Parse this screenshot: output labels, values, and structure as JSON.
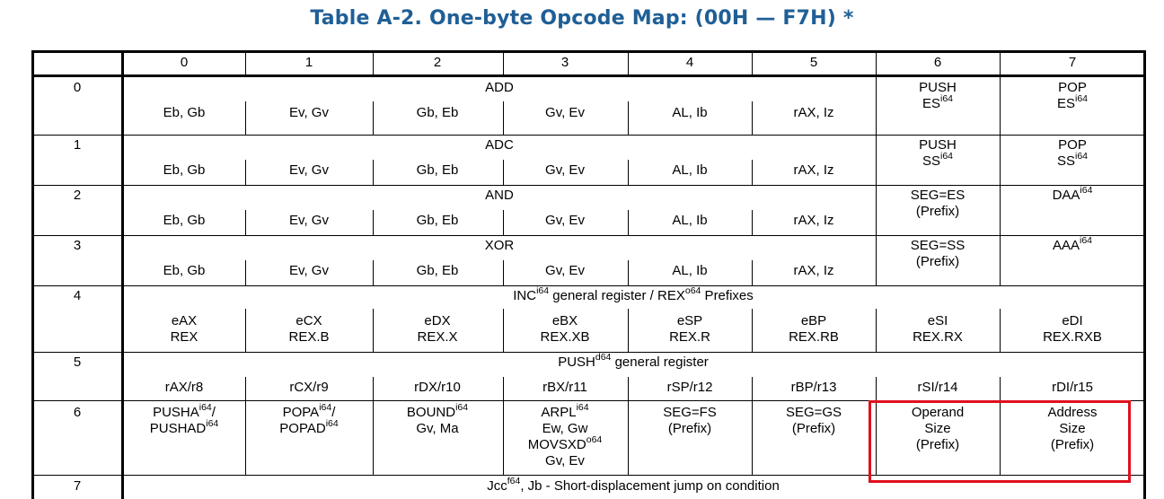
{
  "title": "Table A-2.  One-byte Opcode Map: (00H — F7H) *",
  "columns": [
    "0",
    "1",
    "2",
    "3",
    "4",
    "5",
    "6",
    "7"
  ],
  "rows": [
    {
      "label": "0",
      "group": "ADD",
      "ops": [
        "Eb, Gb",
        "Ev, Gv",
        "Gb, Eb",
        "Gv, Ev",
        "AL, Ib",
        "rAX, Iz"
      ],
      "c6": {
        "l1": "PUSH",
        "l2": "ES",
        "sup": "i64"
      },
      "c7": {
        "l1": "POP",
        "l2": "ES",
        "sup": "i64"
      }
    },
    {
      "label": "1",
      "group": "ADC",
      "ops": [
        "Eb, Gb",
        "Ev, Gv",
        "Gb, Eb",
        "Gv, Ev",
        "AL, Ib",
        "rAX, Iz"
      ],
      "c6": {
        "l1": "PUSH",
        "l2": "SS",
        "sup": "i64"
      },
      "c7": {
        "l1": "POP",
        "l2": "SS",
        "sup": "i64"
      }
    },
    {
      "label": "2",
      "group": "AND",
      "ops": [
        "Eb, Gb",
        "Ev, Gv",
        "Gb, Eb",
        "Gv, Ev",
        "AL, Ib",
        "rAX, Iz"
      ],
      "c6": {
        "l1": "SEG=ES",
        "l2": "(Prefix)"
      },
      "c7": {
        "l1": "DAA",
        "sup": "i64"
      }
    },
    {
      "label": "3",
      "group": "XOR",
      "ops": [
        "Eb, Gb",
        "Ev, Gv",
        "Gb, Eb",
        "Gv, Ev",
        "AL, Ib",
        "rAX, Iz"
      ],
      "c6": {
        "l1": "SEG=SS",
        "l2": "(Prefix)"
      },
      "c7": {
        "l1": "AAA",
        "sup": "i64"
      }
    },
    {
      "label": "4",
      "group": {
        "a": "INC",
        "sup_a": "i64",
        "b": " general register / REX",
        "sup_b": "o64",
        "c": " Prefixes"
      },
      "ops": [
        [
          "eAX",
          "REX"
        ],
        [
          "eCX",
          "REX.B"
        ],
        [
          "eDX",
          "REX.X"
        ],
        [
          "eBX",
          "REX.XB"
        ],
        [
          "eSP",
          "REX.R"
        ],
        [
          "eBP",
          "REX.RB"
        ],
        [
          "eSI",
          "REX.RX"
        ],
        [
          "eDI",
          "REX.RXB"
        ]
      ]
    },
    {
      "label": "5",
      "group": {
        "a": "PUSH",
        "sup_a": "d64",
        "b": " general register"
      },
      "ops": [
        "rAX/r8",
        "rCX/r9",
        "rDX/r10",
        "rBX/r11",
        "rSP/r12",
        "rBP/r13",
        "rSI/r14",
        "rDI/r15"
      ]
    },
    {
      "label": "6",
      "cells": [
        {
          "l1": "PUSHA",
          "s1": "i64",
          "t1": "/",
          "l2": "PUSHAD",
          "s2": "i64"
        },
        {
          "l1": "POPA",
          "s1": "i64",
          "t1": "/",
          "l2": "POPAD",
          "s2": "i64"
        },
        {
          "l1": "BOUND",
          "s1": "i64",
          "l2": "Gv, Ma"
        },
        {
          "l1": "ARPL",
          "s1": "i64",
          "l2": "Ew, Gw",
          "l3": "MOVSXD",
          "s3": "o64",
          "l4": "Gv, Ev"
        },
        {
          "l1": "SEG=FS",
          "l2": "(Prefix)"
        },
        {
          "l1": "SEG=GS",
          "l2": "(Prefix)"
        },
        {
          "l1": "Operand",
          "l2": "Size",
          "l3": "(Prefix)"
        },
        {
          "l1": "Address",
          "l2": "Size",
          "l3": "(Prefix)"
        }
      ]
    },
    {
      "label": "7",
      "group": {
        "a": "Jcc",
        "sup_a": "f64",
        "b": ", Jb - Short-displacement jump on condition"
      }
    }
  ],
  "highlight_color": "#e0101e",
  "title_color": "#1f5f96"
}
